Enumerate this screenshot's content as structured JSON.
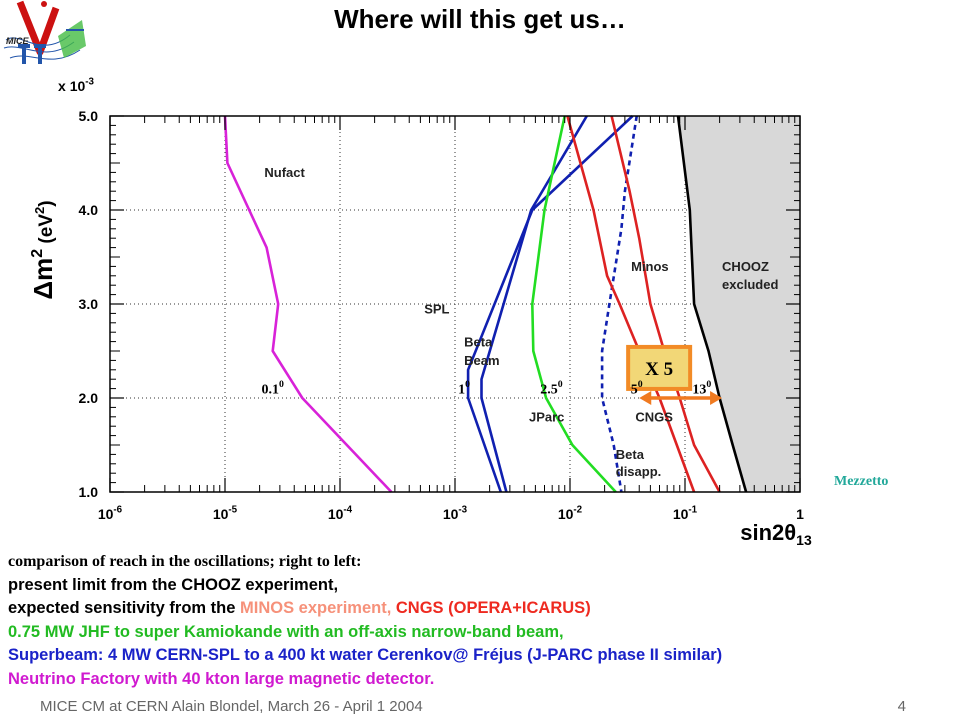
{
  "title": "Where will this get us…",
  "logo": {
    "text": "MICE",
    "icon": "mice-nu-logo-icon"
  },
  "credit": "Mezzetto",
  "chart_data": {
    "type": "line",
    "xscale": "log",
    "xlim": [
      1e-06,
      1
    ],
    "ylim": [
      1.0,
      5.0
    ],
    "y_multiplier_label": "x 10",
    "y_multiplier_exp": "-3",
    "xlabel": "sin2θ",
    "xlabel_sub": "13",
    "ylabel": "Δm",
    "ylabel_sup": "2",
    "ylabel_unit": "(eV",
    "ylabel_unit_sup": "2",
    "ylabel_unit_close": ")",
    "x_tick_labels": [
      {
        "value": 1e-06,
        "base": "10",
        "exp": "-6"
      },
      {
        "value": 1e-05,
        "base": "10",
        "exp": "-5"
      },
      {
        "value": 0.0001,
        "base": "10",
        "exp": "-4"
      },
      {
        "value": 0.001,
        "base": "10",
        "exp": "-3"
      },
      {
        "value": 0.01,
        "base": "10",
        "exp": "-2"
      },
      {
        "value": 0.1,
        "base": "10",
        "exp": "-1"
      },
      {
        "value": 1,
        "base": "1",
        "exp": ""
      }
    ],
    "y_ticks": [
      1.0,
      2.0,
      3.0,
      4.0,
      5.0
    ],
    "y_tick_labels": [
      "1.0",
      "2.0",
      "3.0",
      "4.0",
      "5.0"
    ],
    "grid": true,
    "series": [
      {
        "name": "Nufact",
        "color": "#d822d8",
        "dashed": false,
        "x": [
          1e-05,
          1.05e-05,
          2.3e-05,
          2.9e-05,
          2.6e-05,
          4.7e-05,
          0.00028
        ],
        "y": [
          5.0,
          4.5,
          3.6,
          3.0,
          2.5,
          2.0,
          1.0
        ]
      },
      {
        "name": "SPL",
        "color": "#1020b0",
        "dashed": false,
        "x": [
          0.035,
          0.0047,
          0.0013,
          0.0013,
          0.0025
        ],
        "y": [
          5.0,
          4.0,
          2.3,
          2.0,
          1.0
        ]
      },
      {
        "name": "Beta Beam",
        "color": "#1020b0",
        "dashed": false,
        "x": [
          0.014,
          0.0046,
          0.0017,
          0.0017,
          0.0028
        ],
        "y": [
          5.0,
          4.0,
          2.2,
          2.0,
          1.0
        ]
      },
      {
        "name": "JParc",
        "color": "#22dd22",
        "dashed": false,
        "x": [
          0.009,
          0.006,
          0.0047,
          0.0048,
          0.0062,
          0.0105,
          0.025
        ],
        "y": [
          5.0,
          4.0,
          3.0,
          2.5,
          2.0,
          1.5,
          1.0
        ]
      },
      {
        "name": "Beta disapp.",
        "color": "#1020b0",
        "dashed": true,
        "x": [
          0.038,
          0.03,
          0.028,
          0.022,
          0.019,
          0.019,
          0.024,
          0.028
        ],
        "y": [
          5.0,
          4.2,
          3.8,
          3.0,
          2.5,
          2.0,
          1.5,
          1.0
        ]
      },
      {
        "name": "CNGS",
        "color": "#dd2222",
        "dashed": false,
        "x": [
          0.0095,
          0.016,
          0.021,
          0.027,
          0.04,
          0.06,
          0.12
        ],
        "y": [
          5.0,
          4.0,
          3.3,
          3.0,
          2.5,
          2.0,
          1.0
        ]
      },
      {
        "name": "Minos",
        "color": "#dd2222",
        "dashed": false,
        "x": [
          0.023,
          0.033,
          0.04,
          0.05,
          0.066,
          0.09,
          0.12,
          0.2
        ],
        "y": [
          5.0,
          4.2,
          3.7,
          3.0,
          2.5,
          2.0,
          1.5,
          1.0
        ]
      },
      {
        "name": "CHOOZ excluded",
        "color": "#000000",
        "dashed": false,
        "fill": "#d8d8d8",
        "x": [
          0.087,
          0.11,
          0.12,
          0.16,
          0.2,
          0.26,
          0.34
        ],
        "y": [
          5.0,
          4.0,
          3.0,
          2.5,
          2.0,
          1.5,
          1.0
        ]
      }
    ],
    "curve_labels": [
      {
        "text": "Nufact",
        "x": 2.2e-05,
        "y": 4.35
      },
      {
        "text": "SPL",
        "x": 0.00054,
        "y": 2.9
      },
      {
        "text": "Beta",
        "x": 0.0012,
        "y": 2.55
      },
      {
        "text": "Beam",
        "x": 0.0012,
        "y": 2.35
      },
      {
        "text": "JParc",
        "x": 0.0044,
        "y": 1.75
      },
      {
        "text": "Minos",
        "x": 0.034,
        "y": 3.35
      },
      {
        "text": "CNGS",
        "x": 0.037,
        "y": 1.75
      },
      {
        "text": "Beta",
        "x": 0.025,
        "y": 1.35
      },
      {
        "text": "disapp.",
        "x": 0.025,
        "y": 1.17
      },
      {
        "text": "CHOOZ",
        "x": 0.21,
        "y": 3.35
      },
      {
        "text": "excluded",
        "x": 0.21,
        "y": 3.16
      }
    ],
    "angle_labels": [
      {
        "base": "0.1",
        "sup": "0",
        "x": 2.6e-05,
        "y": 2.05
      },
      {
        "base": "1",
        "sup": "0",
        "x": 0.0012,
        "y": 2.05
      },
      {
        "base": "2.5",
        "sup": "0",
        "x": 0.0069,
        "y": 2.05
      },
      {
        "base": "5",
        "sup": "0",
        "x": 0.038,
        "y": 2.05
      },
      {
        "base": "13",
        "sup": "0",
        "x": 0.14,
        "y": 2.05
      }
    ],
    "annotation": {
      "text": "X 5",
      "x": 0.055,
      "y": 2.32,
      "fill": "#f2d777",
      "border": "#f28b26",
      "arrow": {
        "from_x": 0.04,
        "to_x": 0.21,
        "y": 2.0,
        "color": "#f07a20"
      }
    }
  },
  "caption": {
    "intro": "comparison of reach in the  oscillations; right to left:",
    "lines": [
      {
        "parts": [
          {
            "text": "present limit from the CHOOZ experiment,",
            "color": "#000000"
          }
        ]
      },
      {
        "parts": [
          {
            "text": "expected sensitivity from the ",
            "color": "#000000"
          },
          {
            "text": "MINOS experiment, ",
            "color": "#f6917a"
          },
          {
            "text": "CNGS (OPERA+ICARUS)",
            "color": "#ee2a20"
          }
        ]
      },
      {
        "parts": [
          {
            "text": "0.75 MW JHF to super Kamiokande with an off-axis narrow-band beam,",
            "color": "#22bb22"
          }
        ]
      },
      {
        "parts": [
          {
            "text": "Superbeam: 4 MW CERN-SPL to a 400 kt water Cerenkov@ Fréjus (J-PARC phase II similar)",
            "color": "#1a22c8"
          }
        ]
      },
      {
        "parts": [
          {
            "text": "Neutrino Factory with 40 kton large magnetic detector.",
            "color": "#d01ad0"
          }
        ]
      }
    ]
  },
  "footer": {
    "left": "MICE CM at CERN Alain Blondel,  March 26 - April 1 2004",
    "page": "4"
  }
}
